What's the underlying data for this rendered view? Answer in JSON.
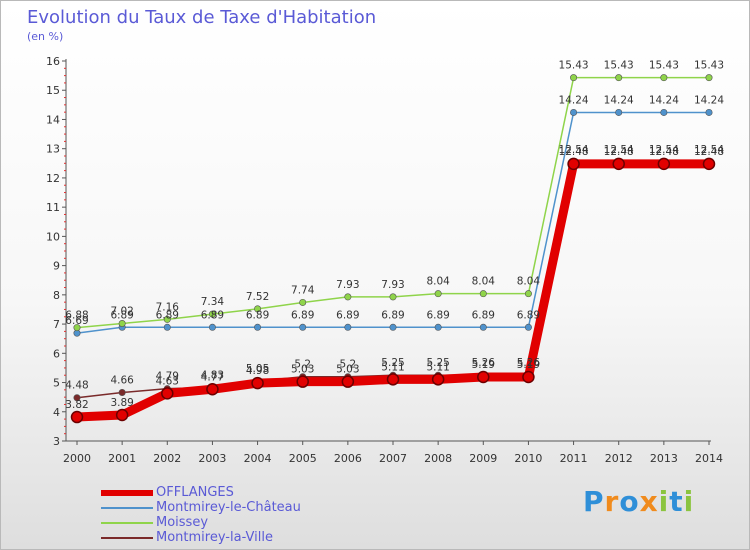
{
  "page": {
    "title": "Evolution du Taux de Taxe d'Habitation",
    "unit": "(en %)",
    "logo": "Proxiti"
  },
  "chart_data": {
    "type": "line",
    "title": "Evolution du Taux de Taxe d'Habitation",
    "ylabel": "(en %)",
    "xlabel": "",
    "ylim": [
      3,
      16
    ],
    "yticks": [
      "3",
      "4",
      "5",
      "6",
      "7",
      "8",
      "9",
      "10",
      "11",
      "12",
      "13",
      "14",
      "15",
      "16"
    ],
    "categories": [
      "2000",
      "2001",
      "2002",
      "2003",
      "2004",
      "2005",
      "2006",
      "2007",
      "2008",
      "2009",
      "2010",
      "2011",
      "2012",
      "2013",
      "2014"
    ],
    "grid": false,
    "legend_position": "bottom-left",
    "series": [
      {
        "name": "OFFLANGES",
        "color": "#e10000",
        "values": [
          3.82,
          3.89,
          4.63,
          4.77,
          4.98,
          5.03,
          5.03,
          5.11,
          5.11,
          5.19,
          5.19,
          12.48,
          12.48,
          12.48,
          12.48
        ],
        "labels": [
          "3.82",
          "3.89",
          "4.63",
          "4.77",
          "4.98",
          "5.03",
          "5.03",
          "5.11",
          "5.11",
          "5.19",
          "5.19",
          "12.48",
          "12.48",
          "12.48",
          "12.48"
        ]
      },
      {
        "name": "Montmirey-le-Château",
        "color": "#4f92cc",
        "values": [
          6.69,
          6.89,
          6.89,
          6.89,
          6.89,
          6.89,
          6.89,
          6.89,
          6.89,
          6.89,
          6.89,
          14.24,
          14.24,
          14.24,
          14.24
        ],
        "labels": [
          "6.69",
          "6.89",
          "6.89",
          "6.89",
          "6.89",
          "6.89",
          "6.89",
          "6.89",
          "6.89",
          "6.89",
          "6.89",
          "14.24",
          "14.24",
          "14.24",
          "14.24"
        ]
      },
      {
        "name": "Moissey",
        "color": "#8fd44a",
        "values": [
          6.88,
          7.02,
          7.16,
          7.34,
          7.52,
          7.74,
          7.93,
          7.93,
          8.04,
          8.04,
          8.04,
          15.43,
          15.43,
          15.43,
          15.43
        ],
        "labels": [
          "6.88",
          "7.02",
          "7.16",
          "7.34",
          "7.52",
          "7.74",
          "7.93",
          "7.93",
          "8.04",
          "8.04",
          "8.04",
          "15.43",
          "15.43",
          "15.43",
          "15.43"
        ]
      },
      {
        "name": "Montmirey-la-Ville",
        "color": "#7a2a2a",
        "values": [
          4.48,
          4.66,
          4.79,
          4.83,
          5.05,
          5.2,
          5.2,
          5.25,
          5.25,
          5.26,
          5.26,
          12.54,
          12.54,
          12.54,
          12.54
        ],
        "labels": [
          "4.48",
          "4.66",
          "4.79",
          "4.83",
          "5.05",
          "5.2",
          "5.2",
          "5.25",
          "5.25",
          "5.26",
          "5.26",
          "12.54",
          "12.54",
          "12.54",
          "12.54"
        ]
      }
    ]
  }
}
